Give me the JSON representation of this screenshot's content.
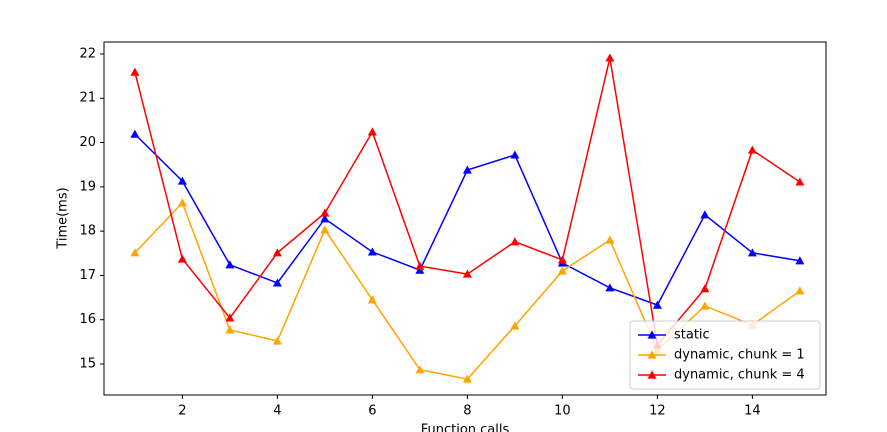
{
  "chart_data": {
    "type": "line",
    "xlabel": "Function calls",
    "ylabel": "Time(ms)",
    "x": [
      1,
      2,
      3,
      4,
      5,
      6,
      7,
      8,
      9,
      10,
      11,
      12,
      13,
      14,
      15
    ],
    "series": [
      {
        "name": "static",
        "color": "#0000ff",
        "values": [
          20.19,
          19.13,
          17.24,
          16.83,
          18.28,
          17.53,
          17.12,
          19.38,
          19.72,
          17.28,
          16.72,
          16.33,
          18.37,
          17.51,
          17.33
        ]
      },
      {
        "name": "dynamic, chunk = 1",
        "color": "#ffa500",
        "values": [
          17.51,
          18.64,
          15.77,
          15.52,
          18.03,
          16.45,
          14.87,
          14.66,
          15.86,
          17.1,
          17.8,
          15.32,
          16.31,
          15.88,
          16.65
        ]
      },
      {
        "name": "dynamic, chunk = 4",
        "color": "#ff0000",
        "values": [
          21.59,
          17.37,
          16.04,
          17.51,
          18.41,
          20.24,
          17.21,
          17.03,
          17.76,
          17.35,
          21.91,
          15.43,
          16.7,
          19.83,
          19.11
        ]
      }
    ],
    "xlim": [
      0.35,
      15.55
    ],
    "xticks": [
      2,
      4,
      6,
      8,
      10,
      12,
      14
    ],
    "ylim": [
      14.3,
      22.27
    ],
    "yticks": [
      15,
      16,
      17,
      18,
      19,
      20,
      21,
      22
    ],
    "legend": "lower right",
    "marker": "triangle"
  }
}
